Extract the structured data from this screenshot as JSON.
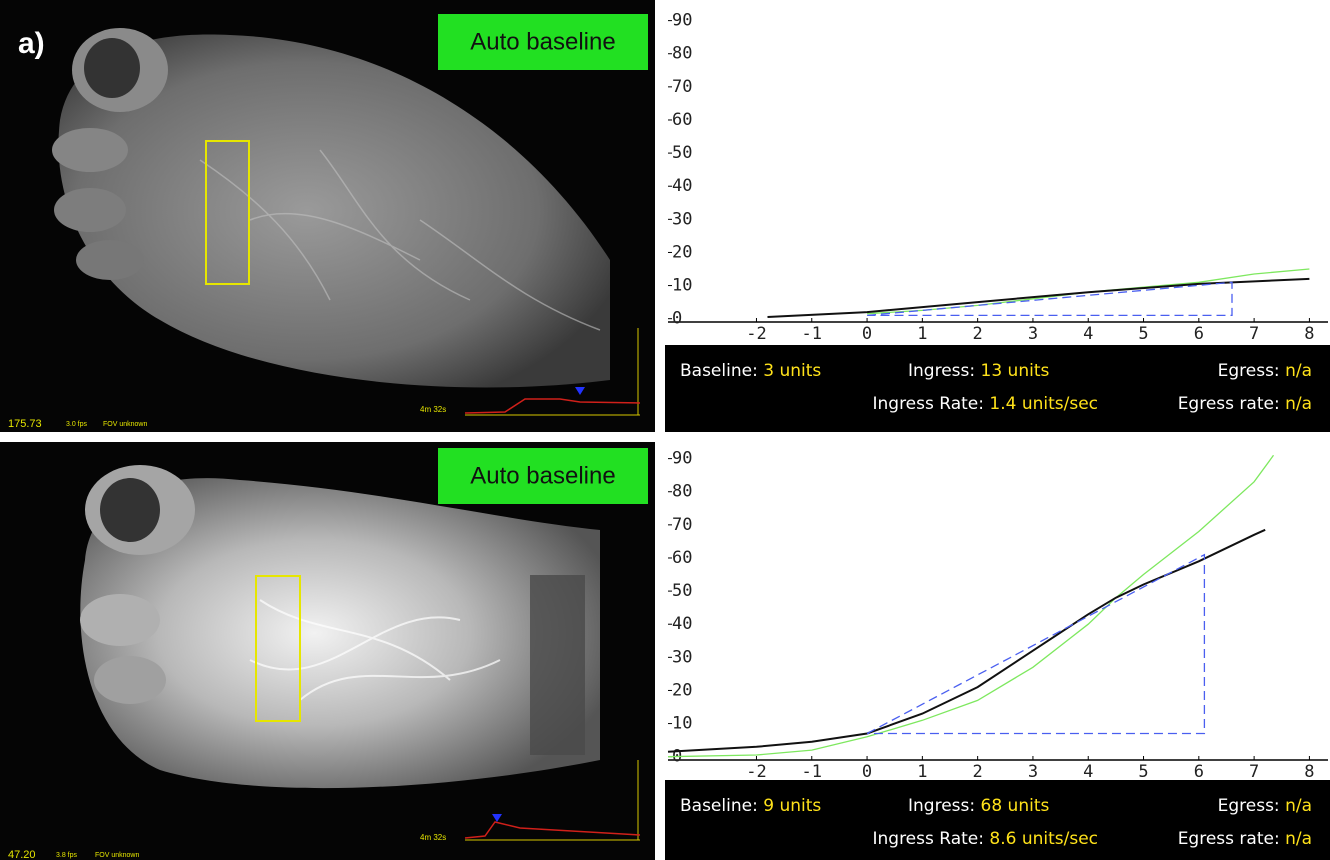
{
  "figure_label": "a)",
  "panels": [
    {
      "badge": "Auto baseline",
      "readout": "175.73",
      "fps": "3.0 fps",
      "fov": "FOV unknown",
      "inset_time": "4m 32s",
      "stats": [
        [
          {
            "label": "Baseline:",
            "value": "3 units"
          },
          {
            "label": "Ingress:",
            "value": "13 units"
          },
          {
            "label": "Egress:",
            "value": "n/a"
          }
        ],
        [
          {
            "label": "Ingress Rate:",
            "value": "1.4 units/sec"
          },
          {
            "label": "Egress rate:",
            "value": "n/a"
          }
        ]
      ]
    },
    {
      "badge": "Auto baseline",
      "readout": "47.20",
      "fps": "3.8 fps",
      "fov": "FOV unknown",
      "inset_time": "4m 32s",
      "stats": [
        [
          {
            "label": "Baseline:",
            "value": "9 units"
          },
          {
            "label": "Ingress:",
            "value": "68 units"
          },
          {
            "label": "Egress:",
            "value": "n/a"
          }
        ],
        [
          {
            "label": "Ingress Rate:",
            "value": "8.6 units/sec"
          },
          {
            "label": "Egress rate:",
            "value": "n/a"
          }
        ]
      ]
    }
  ],
  "chart_data": [
    {
      "type": "line",
      "xlim": [
        -3.6,
        8.3
      ],
      "ylim": [
        -1,
        92
      ],
      "xticks": [
        -2,
        -1,
        0,
        1,
        2,
        3,
        4,
        5,
        6,
        7,
        8
      ],
      "yticks": [
        0,
        10,
        20,
        30,
        40,
        50,
        60,
        70,
        80,
        90
      ],
      "series": [
        {
          "color": "#7ee85f",
          "dashed": false,
          "x": [
            0,
            1,
            2,
            3,
            4,
            5,
            6,
            7,
            8
          ],
          "values": [
            1.5,
            2.5,
            4,
            6,
            8,
            9.5,
            11,
            13.5,
            15
          ]
        },
        {
          "color": "#111111",
          "dashed": false,
          "x": [
            -1.8,
            0,
            2,
            4,
            6,
            8
          ],
          "values": [
            0.5,
            2,
            5,
            8,
            10.5,
            12
          ]
        },
        {
          "color": "#4a5ff0",
          "dashed": true,
          "x": [
            0,
            6.6,
            6.6,
            0
          ],
          "values": [
            1,
            11,
            1,
            1
          ]
        }
      ]
    },
    {
      "type": "line",
      "xlim": [
        -3.6,
        8.3
      ],
      "ylim": [
        -1,
        92
      ],
      "xticks": [
        -2,
        -1,
        0,
        1,
        2,
        3,
        4,
        5,
        6,
        7,
        8
      ],
      "yticks": [
        0,
        10,
        20,
        30,
        40,
        50,
        60,
        70,
        80,
        90
      ],
      "series": [
        {
          "color": "#7ee85f",
          "dashed": false,
          "x": [
            -3.6,
            -2,
            -1,
            0,
            1,
            2,
            3,
            4,
            4.5,
            5,
            6,
            7,
            7.35
          ],
          "values": [
            0,
            0.5,
            2,
            6,
            11,
            17,
            27,
            40,
            48,
            55,
            68,
            83,
            91
          ]
        },
        {
          "color": "#111111",
          "dashed": false,
          "x": [
            -3.6,
            -2,
            -1,
            0,
            1,
            2,
            3,
            4,
            4.5,
            5,
            6,
            7,
            7.2
          ],
          "values": [
            1.5,
            3,
            4.5,
            7,
            13,
            21,
            32,
            43,
            48,
            52,
            59,
            67,
            68.5
          ]
        },
        {
          "color": "#4a5ff0",
          "dashed": true,
          "x": [
            0,
            6.1,
            6.1,
            0
          ],
          "values": [
            7,
            61,
            7,
            7
          ]
        }
      ]
    }
  ]
}
